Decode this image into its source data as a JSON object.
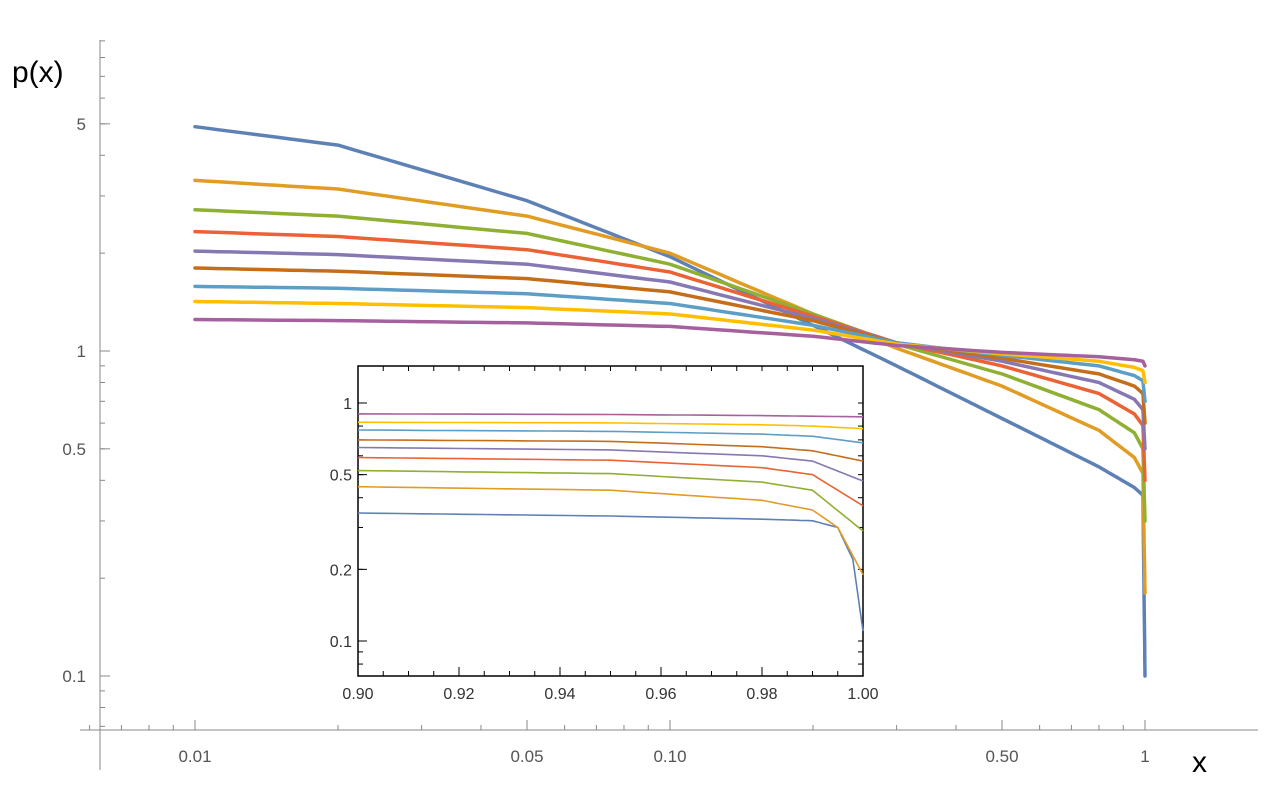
{
  "chart_data": [
    {
      "type": "line",
      "title": "",
      "xlabel": "x",
      "ylabel": "p(x)",
      "xscale": "log",
      "yscale": "log",
      "xlim": [
        0.006,
        2.5
      ],
      "ylim": [
        0.065,
        10
      ],
      "x_ticks": [
        0.01,
        0.05,
        0.1,
        0.5,
        1
      ],
      "x_tick_labels": [
        "0.01",
        "0.05",
        "0.10",
        "0.50",
        "1"
      ],
      "y_ticks": [
        0.1,
        0.5,
        1,
        5
      ],
      "y_tick_labels": [
        "0.1",
        "0.5",
        "1",
        "5"
      ],
      "grid": false,
      "legend": "none",
      "series": [
        {
          "color": "#5e81b5",
          "points": [
            [
              0.01,
              4.9
            ],
            [
              0.02,
              4.3
            ],
            [
              0.05,
              2.9
            ],
            [
              0.1,
              1.95
            ],
            [
              0.2,
              1.2
            ],
            [
              0.3,
              0.9
            ],
            [
              0.5,
              0.62
            ],
            [
              0.8,
              0.44
            ],
            [
              0.95,
              0.38
            ],
            [
              0.99,
              0.36
            ],
            [
              1,
              0.1
            ]
          ]
        },
        {
          "color": "#e19c24",
          "points": [
            [
              0.01,
              3.35
            ],
            [
              0.02,
              3.15
            ],
            [
              0.05,
              2.6
            ],
            [
              0.1,
              2.0
            ],
            [
              0.2,
              1.3
            ],
            [
              0.3,
              1.02
            ],
            [
              0.5,
              0.78
            ],
            [
              0.8,
              0.57
            ],
            [
              0.95,
              0.47
            ],
            [
              0.99,
              0.42
            ],
            [
              1,
              0.18
            ]
          ]
        },
        {
          "color": "#8fb032",
          "points": [
            [
              0.01,
              2.72
            ],
            [
              0.02,
              2.6
            ],
            [
              0.05,
              2.3
            ],
            [
              0.1,
              1.85
            ],
            [
              0.2,
              1.3
            ],
            [
              0.3,
              1.05
            ],
            [
              0.5,
              0.85
            ],
            [
              0.8,
              0.66
            ],
            [
              0.95,
              0.56
            ],
            [
              0.99,
              0.5
            ],
            [
              1,
              0.3
            ]
          ]
        },
        {
          "color": "#eb6235",
          "points": [
            [
              0.01,
              2.33
            ],
            [
              0.02,
              2.25
            ],
            [
              0.05,
              2.05
            ],
            [
              0.1,
              1.75
            ],
            [
              0.2,
              1.28
            ],
            [
              0.3,
              1.06
            ],
            [
              0.5,
              0.9
            ],
            [
              0.8,
              0.74
            ],
            [
              0.95,
              0.64
            ],
            [
              0.99,
              0.59
            ],
            [
              1,
              0.4
            ]
          ]
        },
        {
          "color": "#8778b3",
          "points": [
            [
              0.01,
              2.03
            ],
            [
              0.02,
              1.98
            ],
            [
              0.05,
              1.85
            ],
            [
              0.1,
              1.63
            ],
            [
              0.2,
              1.26
            ],
            [
              0.3,
              1.06
            ],
            [
              0.5,
              0.93
            ],
            [
              0.8,
              0.8
            ],
            [
              0.95,
              0.71
            ],
            [
              0.99,
              0.66
            ],
            [
              1,
              0.5
            ]
          ]
        },
        {
          "color": "#c56e1a",
          "points": [
            [
              0.01,
              1.8
            ],
            [
              0.02,
              1.76
            ],
            [
              0.05,
              1.67
            ],
            [
              0.1,
              1.52
            ],
            [
              0.2,
              1.24
            ],
            [
              0.3,
              1.06
            ],
            [
              0.5,
              0.95
            ],
            [
              0.8,
              0.85
            ],
            [
              0.95,
              0.78
            ],
            [
              0.99,
              0.74
            ],
            [
              1,
              0.6
            ]
          ]
        },
        {
          "color": "#5d9ec7",
          "points": [
            [
              0.01,
              1.58
            ],
            [
              0.02,
              1.56
            ],
            [
              0.05,
              1.5
            ],
            [
              0.1,
              1.4
            ],
            [
              0.2,
              1.2
            ],
            [
              0.3,
              1.06
            ],
            [
              0.5,
              0.97
            ],
            [
              0.8,
              0.9
            ],
            [
              0.95,
              0.84
            ],
            [
              0.99,
              0.81
            ],
            [
              1,
              0.7
            ]
          ]
        },
        {
          "color": "#ffbf00",
          "points": [
            [
              0.01,
              1.42
            ],
            [
              0.02,
              1.4
            ],
            [
              0.05,
              1.36
            ],
            [
              0.1,
              1.3
            ],
            [
              0.2,
              1.16
            ],
            [
              0.3,
              1.05
            ],
            [
              0.5,
              0.98
            ],
            [
              0.8,
              0.93
            ],
            [
              0.95,
              0.89
            ],
            [
              0.99,
              0.87
            ],
            [
              1,
              0.8
            ]
          ]
        },
        {
          "color": "#a5609d",
          "points": [
            [
              0.01,
              1.25
            ],
            [
              0.02,
              1.24
            ],
            [
              0.05,
              1.22
            ],
            [
              0.1,
              1.19
            ],
            [
              0.2,
              1.11
            ],
            [
              0.3,
              1.04
            ],
            [
              0.5,
              0.99
            ],
            [
              0.8,
              0.96
            ],
            [
              0.95,
              0.94
            ],
            [
              0.99,
              0.93
            ],
            [
              1,
              0.9
            ]
          ]
        }
      ]
    },
    {
      "type": "line",
      "title": "",
      "xlabel": "",
      "ylabel": "",
      "yscale": "log",
      "xlim": [
        0.9,
        1.0
      ],
      "ylim": [
        0.07,
        1.4
      ],
      "x_ticks": [
        0.9,
        0.92,
        0.94,
        0.96,
        0.98,
        1.0
      ],
      "x_tick_labels": [
        "0.90",
        "0.92",
        "0.94",
        "0.96",
        "0.98",
        "1.00"
      ],
      "y_ticks": [
        0.1,
        0.2,
        0.5,
        1
      ],
      "y_tick_labels": [
        "0.1",
        "0.2",
        "0.5",
        "1"
      ],
      "grid": false,
      "legend": "none",
      "series": [
        {
          "color": "#5e81b5",
          "points": [
            [
              0.9,
              0.345
            ],
            [
              0.95,
              0.335
            ],
            [
              0.98,
              0.325
            ],
            [
              0.99,
              0.32
            ],
            [
              0.995,
              0.3
            ],
            [
              0.998,
              0.22
            ],
            [
              1.0,
              0.11
            ]
          ]
        },
        {
          "color": "#e19c24",
          "points": [
            [
              0.9,
              0.445
            ],
            [
              0.95,
              0.43
            ],
            [
              0.98,
              0.39
            ],
            [
              0.99,
              0.355
            ],
            [
              0.995,
              0.3
            ],
            [
              1.0,
              0.19
            ]
          ]
        },
        {
          "color": "#8fb032",
          "points": [
            [
              0.9,
              0.52
            ],
            [
              0.95,
              0.505
            ],
            [
              0.98,
              0.465
            ],
            [
              0.99,
              0.43
            ],
            [
              1.0,
              0.29
            ]
          ]
        },
        {
          "color": "#eb6235",
          "points": [
            [
              0.9,
              0.59
            ],
            [
              0.95,
              0.575
            ],
            [
              0.98,
              0.535
            ],
            [
              0.99,
              0.5
            ],
            [
              1.0,
              0.37
            ]
          ]
        },
        {
          "color": "#8778b3",
          "points": [
            [
              0.9,
              0.65
            ],
            [
              0.95,
              0.635
            ],
            [
              0.98,
              0.6
            ],
            [
              0.99,
              0.57
            ],
            [
              1.0,
              0.47
            ]
          ]
        },
        {
          "color": "#c56e1a",
          "points": [
            [
              0.9,
              0.7
            ],
            [
              0.95,
              0.69
            ],
            [
              0.98,
              0.655
            ],
            [
              0.99,
              0.63
            ],
            [
              1.0,
              0.57
            ]
          ]
        },
        {
          "color": "#5d9ec7",
          "points": [
            [
              0.9,
              0.77
            ],
            [
              0.95,
              0.76
            ],
            [
              0.98,
              0.74
            ],
            [
              0.99,
              0.725
            ],
            [
              1.0,
              0.68
            ]
          ]
        },
        {
          "color": "#ffbf00",
          "points": [
            [
              0.9,
              0.83
            ],
            [
              0.95,
              0.825
            ],
            [
              0.98,
              0.81
            ],
            [
              0.99,
              0.8
            ],
            [
              1.0,
              0.78
            ]
          ]
        },
        {
          "color": "#a5609d",
          "points": [
            [
              0.9,
              0.9
            ],
            [
              0.95,
              0.895
            ],
            [
              0.98,
              0.885
            ],
            [
              0.99,
              0.88
            ],
            [
              1.0,
              0.875
            ]
          ]
        }
      ]
    }
  ]
}
